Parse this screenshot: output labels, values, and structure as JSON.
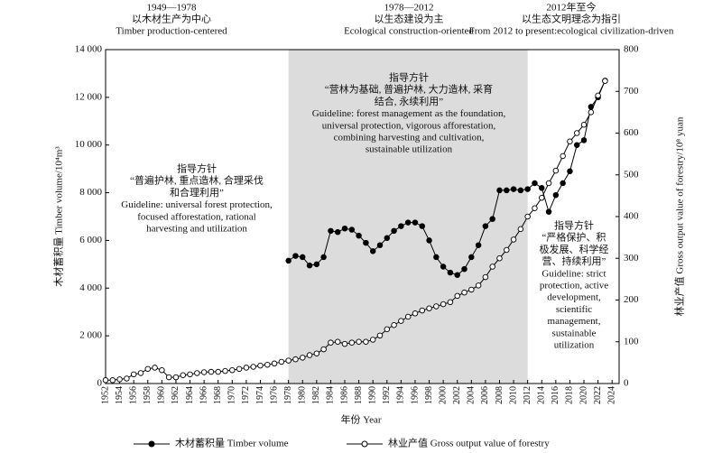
{
  "chart_data": {
    "type": "line",
    "x_label": "年份 Year",
    "y_label": "木材蓄积量 Timber volume/10⁴m³",
    "y2_label": "林业产值 Gross output value of forestry/10⁸ yuan",
    "xlim": [
      1952,
      2025
    ],
    "ylim": [
      0,
      14000
    ],
    "y2lim": [
      0,
      800
    ],
    "xticks": [
      1952,
      1954,
      1956,
      1958,
      1960,
      1962,
      1964,
      1966,
      1968,
      1970,
      1972,
      1974,
      1976,
      1978,
      1980,
      1982,
      1984,
      1986,
      1988,
      1990,
      1992,
      1994,
      1996,
      1998,
      2000,
      2002,
      2004,
      2006,
      2008,
      2010,
      2012,
      2014,
      2016,
      2018,
      2020,
      2022,
      2024
    ],
    "yticks": [
      0,
      {
        "value": 2000,
        "label": "2 000"
      },
      {
        "value": 4000,
        "label": "4 000"
      },
      {
        "value": 6000,
        "label": "6 000"
      },
      {
        "value": 8000,
        "label": "8 000"
      },
      {
        "value": 10000,
        "label": "10 000"
      },
      {
        "value": 12000,
        "label": "12 000"
      },
      {
        "value": 14000,
        "label": "14 000"
      }
    ],
    "y2ticks": [
      0,
      100,
      200,
      300,
      400,
      500,
      600,
      700,
      800
    ],
    "shaded_region": [
      1978,
      2012
    ],
    "shade_color": "#dcdcdc",
    "x": [
      1952,
      1953,
      1954,
      1955,
      1956,
      1957,
      1958,
      1959,
      1960,
      1961,
      1962,
      1963,
      1964,
      1965,
      1966,
      1967,
      1968,
      1969,
      1970,
      1971,
      1972,
      1973,
      1974,
      1975,
      1976,
      1977,
      1978,
      1979,
      1980,
      1981,
      1982,
      1983,
      1984,
      1985,
      1986,
      1987,
      1988,
      1989,
      1990,
      1991,
      1992,
      1993,
      1994,
      1995,
      1996,
      1997,
      1998,
      1999,
      2000,
      2001,
      2002,
      2003,
      2004,
      2005,
      2006,
      2007,
      2008,
      2009,
      2010,
      2011,
      2012,
      2013,
      2014,
      2015,
      2016,
      2017,
      2018,
      2019,
      2020,
      2021,
      2022,
      2023
    ],
    "series": [
      {
        "name": "木材蓄积量 Timber volume",
        "color": "#000000",
        "marker_fill": "#000000",
        "values": [
          null,
          null,
          null,
          null,
          null,
          null,
          null,
          null,
          null,
          null,
          null,
          null,
          null,
          null,
          null,
          null,
          null,
          null,
          null,
          null,
          null,
          null,
          null,
          null,
          null,
          null,
          5150,
          5350,
          5300,
          4950,
          5000,
          5300,
          6400,
          6350,
          6500,
          6450,
          6200,
          5900,
          5550,
          5800,
          6100,
          6400,
          6600,
          6750,
          6750,
          6600,
          6000,
          5300,
          4900,
          4650,
          4550,
          4800,
          5300,
          5800,
          6600,
          6900,
          8100,
          8100,
          8150,
          8100,
          8150,
          8400,
          8200,
          7200,
          7900,
          8400,
          8900,
          10000,
          10200,
          11600,
          12000,
          12700
        ]
      },
      {
        "name": "林业产值 Gross output value of forestry",
        "color": "#000000",
        "marker_fill": "#ffffff",
        "axis": "y2",
        "values": [
          8,
          8,
          10,
          12,
          22,
          25,
          35,
          38,
          32,
          15,
          15,
          20,
          22,
          25,
          27,
          28,
          28,
          30,
          32,
          35,
          38,
          40,
          43,
          45,
          48,
          52,
          55,
          58,
          62,
          68,
          72,
          82,
          98,
          100,
          95,
          98,
          100,
          100,
          105,
          115,
          130,
          140,
          150,
          160,
          168,
          175,
          180,
          185,
          190,
          195,
          210,
          218,
          225,
          235,
          255,
          280,
          300,
          320,
          345,
          370,
          400,
          420,
          445,
          480,
          510,
          545,
          580,
          600,
          620,
          650,
          690,
          725
        ]
      }
    ],
    "period_headers": [
      [
        "1949—1978",
        "以木材生产为中心",
        "Timber production-centered"
      ],
      [
        "1978—2012",
        "以生态建设为主",
        "Ecological construction-oriented"
      ],
      [
        "2012年至今",
        "以生态文明理念为指引",
        "From 2012 to present:ecological civilization-driven"
      ]
    ],
    "guidelines": [
      [
        "指导方针",
        "“普遍护林, 重点造林, 合理采伐",
        "和合理利用”",
        "Guideline: universal forest protection,",
        "focused afforestation, rational",
        "harvesting and utilization"
      ],
      [
        "指导方针",
        "“营林为基础, 普遍护林, 大力造林, 采育",
        "结合, 永续利用”",
        "Guideline: forest management as the foundation,",
        "universal protection, vigorous afforestation,",
        "combining harvesting and cultivation,",
        "sustainable utilization"
      ],
      [
        "指导方针",
        "“严格保护、积",
        "极发展、科学经",
        "营、持续利用”",
        "Guideline: strict",
        "protection, active",
        "development,",
        "scientific",
        "management,",
        "sustainable",
        "utilization"
      ]
    ]
  }
}
